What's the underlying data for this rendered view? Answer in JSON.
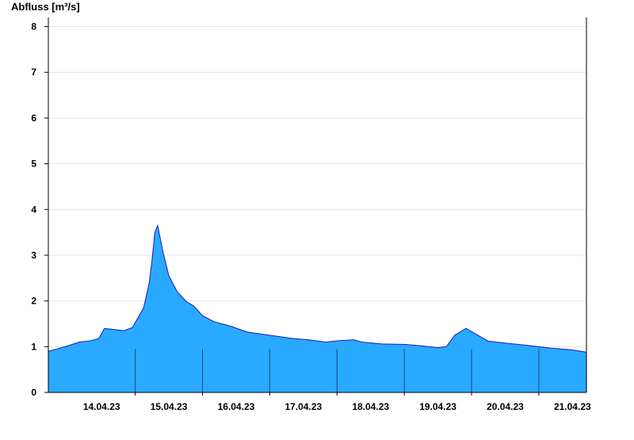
{
  "chart_data": {
    "type": "area",
    "title": "",
    "xlabel": "",
    "ylabel": "Abfluss [m³/s]",
    "ylim": [
      0,
      8.2
    ],
    "yticks": [
      0,
      1,
      2,
      3,
      4,
      5,
      6,
      7,
      8
    ],
    "xlim": [
      "13.04.23 17:00",
      "21.04.23 17:00"
    ],
    "day_labels": [
      "14.04.23",
      "15.04.23",
      "16.04.23",
      "17.04.23",
      "18.04.23",
      "19.04.23",
      "20.04.23",
      "21.04.23"
    ],
    "grid": true,
    "legend": "none",
    "fill_color": "#29a9ff",
    "line_color": "#1a1ab8",
    "x": [
      "13.04.23 17:00",
      "13.04.23 20:00",
      "14.04.23 00:00",
      "14.04.23 04:00",
      "14.04.23 08:00",
      "14.04.23 11:00",
      "14.04.23 13:00",
      "14.04.23 16:00",
      "14.04.23 20:00",
      "14.04.23 23:00",
      "15.04.23 03:00",
      "15.04.23 05:00",
      "15.04.23 06:00",
      "15.04.23 07:00",
      "15.04.23 08:00",
      "15.04.23 10:00",
      "15.04.23 12:00",
      "15.04.23 15:00",
      "15.04.23 18:00",
      "15.04.23 21:00",
      "16.04.23 00:00",
      "16.04.23 04:00",
      "16.04.23 10:00",
      "16.04.23 16:00",
      "17.04.23 00:00",
      "17.04.23 08:00",
      "17.04.23 14:00",
      "17.04.23 20:00",
      "18.04.23 00:00",
      "18.04.23 06:00",
      "18.04.23 09:00",
      "18.04.23 16:00",
      "19.04.23 00:00",
      "19.04.23 06:00",
      "19.04.23 09:00",
      "19.04.23 12:00",
      "19.04.23 15:00",
      "19.04.23 18:00",
      "19.04.23 22:00",
      "20.04.23 06:00",
      "20.04.23 12:00",
      "20.04.23 20:00",
      "21.04.23 04:00",
      "21.04.23 12:00",
      "21.04.23 17:00"
    ],
    "values": [
      0.9,
      0.95,
      1.02,
      1.1,
      1.13,
      1.18,
      1.4,
      1.38,
      1.35,
      1.42,
      1.85,
      2.4,
      2.9,
      3.5,
      3.65,
      3.05,
      2.55,
      2.2,
      2.0,
      1.88,
      1.68,
      1.55,
      1.45,
      1.32,
      1.25,
      1.18,
      1.15,
      1.1,
      1.13,
      1.15,
      1.1,
      1.06,
      1.05,
      1.02,
      1.0,
      0.98,
      1.0,
      1.25,
      1.4,
      1.12,
      1.08,
      1.03,
      0.97,
      0.93,
      0.88
    ]
  }
}
